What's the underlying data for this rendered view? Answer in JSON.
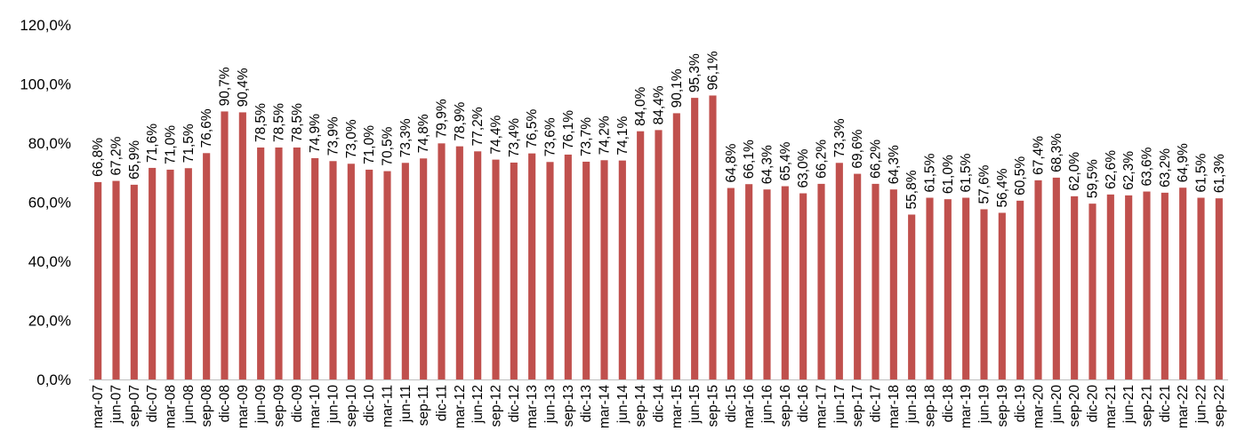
{
  "chart_data": {
    "type": "bar",
    "title": "",
    "xlabel": "",
    "ylabel": "",
    "ylim": [
      0,
      120
    ],
    "yticks": [
      "0,0%",
      "20,0%",
      "40,0%",
      "60,0%",
      "80,0%",
      "100,0%",
      "120,0%"
    ],
    "yticks_values": [
      0,
      20,
      40,
      60,
      80,
      100,
      120
    ],
    "grid": false,
    "bar_color": "#c0504d",
    "categories": [
      "mar-07",
      "jun-07",
      "sep-07",
      "dic-07",
      "mar-08",
      "jun-08",
      "sep-08",
      "dic-08",
      "mar-09",
      "jun-09",
      "sep-09",
      "dic-09",
      "mar-10",
      "jun-10",
      "sep-10",
      "dic-10",
      "mar-11",
      "jun-11",
      "sep-11",
      "dic-11",
      "mar-12",
      "jun-12",
      "sep-12",
      "dic-12",
      "mar-13",
      "jun-13",
      "sep-13",
      "dic-13",
      "mar-14",
      "jun-14",
      "sep-14",
      "dic-14",
      "mar-15",
      "jun-15",
      "sep-15",
      "dic-15",
      "mar-16",
      "jun-16",
      "sep-16",
      "dic-16",
      "mar-17",
      "jun-17",
      "sep-17",
      "dic-17",
      "mar-18",
      "jun-18",
      "sep-18",
      "dic-18",
      "mar-19",
      "jun-19",
      "sep-19",
      "dic-19",
      "mar-20",
      "jun-20",
      "sep-20",
      "dic-20",
      "mar-21",
      "jun-21",
      "sep-21",
      "dic-21",
      "mar-22",
      "jun-22",
      "sep-22"
    ],
    "values": [
      66.8,
      67.2,
      65.9,
      71.6,
      71.0,
      71.5,
      76.6,
      90.7,
      90.4,
      78.5,
      78.5,
      78.5,
      74.9,
      73.9,
      73.0,
      71.0,
      70.5,
      73.3,
      74.8,
      79.9,
      78.9,
      77.2,
      74.4,
      73.4,
      76.5,
      73.6,
      76.1,
      73.7,
      74.2,
      74.1,
      84.0,
      84.4,
      90.1,
      95.3,
      96.1,
      64.8,
      66.1,
      64.3,
      65.4,
      63.0,
      66.2,
      73.3,
      69.6,
      66.2,
      64.3,
      55.8,
      61.5,
      61.0,
      61.5,
      57.6,
      56.4,
      60.5,
      67.4,
      68.3,
      62.0,
      59.5,
      62.6,
      62.3,
      63.6,
      63.2,
      64.9,
      61.5,
      61.3
    ],
    "data_labels": [
      "66,8%",
      "67,2%",
      "65,9%",
      "71,6%",
      "71,0%",
      "71,5%",
      "76,6%",
      "90,7%",
      "90,4%",
      "78,5%",
      "78,5%",
      "78,5%",
      "74,9%",
      "73,9%",
      "73,0%",
      "71,0%",
      "70,5%",
      "73,3%",
      "74,8%",
      "79,9%",
      "78,9%",
      "77,2%",
      "74,4%",
      "73,4%",
      "76,5%",
      "73,6%",
      "76,1%",
      "73,7%",
      "74,2%",
      "74,1%",
      "84,0%",
      "84,4%",
      "90,1%",
      "95,3%",
      "96,1%",
      "64,8%",
      "66,1%",
      "64,3%",
      "65,4%",
      "63,0%",
      "66,2%",
      "73,3%",
      "69,6%",
      "66,2%",
      "64,3%",
      "55,8%",
      "61,5%",
      "61,0%",
      "61,5%",
      "57,6%",
      "56,4%",
      "60,5%",
      "67,4%",
      "68,3%",
      "62,0%",
      "59,5%",
      "62,6%",
      "62,3%",
      "63,6%",
      "63,2%",
      "64,9%",
      "61,5%",
      "61,3%"
    ]
  }
}
